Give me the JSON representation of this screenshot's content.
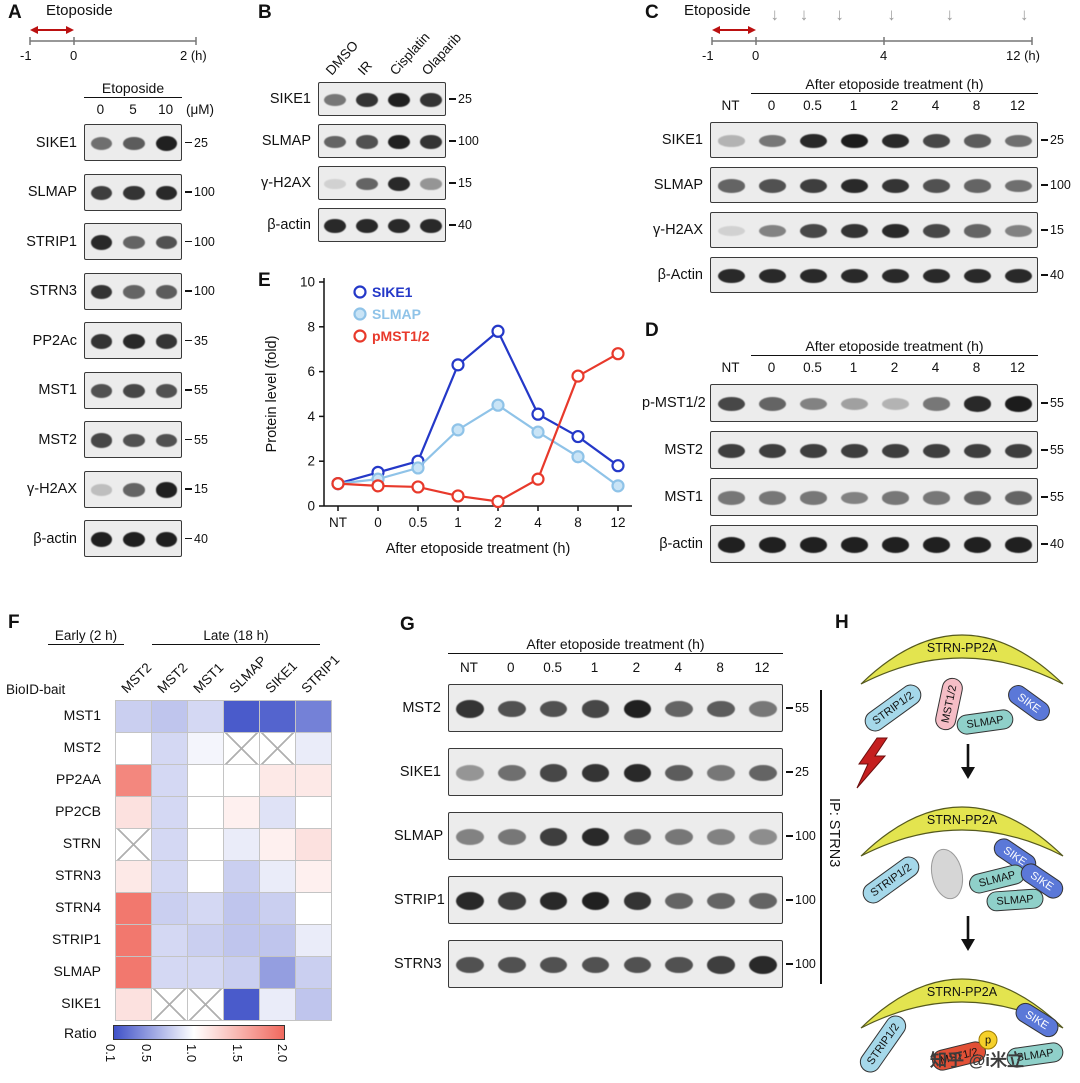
{
  "watermark": "知乎 @i米立",
  "panels": {
    "A": {
      "label": "A",
      "timeline": {
        "drug": "Etoposide",
        "tick_labels": [
          "-1",
          "0",
          "2 (h)"
        ]
      },
      "treatment_header": "Etoposide",
      "lane_unit": "(μM)",
      "lanes": [
        "0",
        "5",
        "10"
      ],
      "rows": [
        {
          "name": "SIKE1",
          "marker": "25",
          "bands": [
            0.55,
            0.65,
            0.95
          ]
        },
        {
          "name": "SLMAP",
          "marker": "100",
          "bands": [
            0.8,
            0.85,
            0.9
          ]
        },
        {
          "name": "STRIP1",
          "marker": "100",
          "bands": [
            0.9,
            0.6,
            0.7
          ]
        },
        {
          "name": "STRN3",
          "marker": "100",
          "bands": [
            0.85,
            0.6,
            0.65
          ]
        },
        {
          "name": "PP2Ac",
          "marker": "35",
          "bands": [
            0.85,
            0.9,
            0.85
          ]
        },
        {
          "name": "MST1",
          "marker": "55",
          "bands": [
            0.7,
            0.75,
            0.7
          ]
        },
        {
          "name": "MST2",
          "marker": "55",
          "bands": [
            0.75,
            0.7,
            0.7
          ]
        },
        {
          "name": "γ-H2AX",
          "marker": "15",
          "bands": [
            0.15,
            0.6,
            0.95
          ]
        },
        {
          "name": "β-actin",
          "marker": "40",
          "bands": [
            0.95,
            0.95,
            0.95
          ]
        }
      ]
    },
    "B": {
      "label": "B",
      "lanes": [
        "DMSO",
        "IR",
        "Cisplatin",
        "Olaparib"
      ],
      "rows": [
        {
          "name": "SIKE1",
          "marker": "25",
          "bands": [
            0.5,
            0.85,
            0.95,
            0.85
          ]
        },
        {
          "name": "SLMAP",
          "marker": "100",
          "bands": [
            0.6,
            0.7,
            0.95,
            0.85
          ]
        },
        {
          "name": "γ-H2AX",
          "marker": "15",
          "bands": [
            0.05,
            0.6,
            0.9,
            0.35
          ]
        },
        {
          "name": "β-actin",
          "marker": "40",
          "bands": [
            0.9,
            0.9,
            0.9,
            0.9
          ]
        }
      ]
    },
    "C": {
      "label": "C",
      "timeline": {
        "drug": "Etoposide",
        "tick_labels": [
          "-1",
          "0",
          "4",
          "12 (h)"
        ],
        "arrow_count": 6
      },
      "treatment_header": "After etoposide treatment (h)",
      "lanes": [
        "NT",
        "0",
        "0.5",
        "1",
        "2",
        "4",
        "8",
        "12"
      ],
      "rows": [
        {
          "name": "SIKE1",
          "marker": "25",
          "bands": [
            0.2,
            0.5,
            0.9,
            0.97,
            0.9,
            0.75,
            0.65,
            0.55
          ]
        },
        {
          "name": "SLMAP",
          "marker": "100",
          "bands": [
            0.6,
            0.7,
            0.8,
            0.9,
            0.85,
            0.7,
            0.6,
            0.55
          ]
        },
        {
          "name": "γ-H2AX",
          "marker": "15",
          "bands": [
            0.05,
            0.45,
            0.75,
            0.85,
            0.9,
            0.75,
            0.6,
            0.45
          ]
        },
        {
          "name": "β-Actin",
          "marker": "40",
          "bands": [
            0.9,
            0.9,
            0.9,
            0.9,
            0.9,
            0.9,
            0.9,
            0.9
          ]
        }
      ]
    },
    "D": {
      "label": "D",
      "treatment_header": "After etoposide treatment (h)",
      "lanes": [
        "NT",
        "0",
        "0.5",
        "1",
        "2",
        "4",
        "8",
        "12"
      ],
      "rows": [
        {
          "name": "p-MST1/2",
          "marker": "55",
          "bands": [
            0.75,
            0.6,
            0.45,
            0.3,
            0.2,
            0.5,
            0.9,
            0.97
          ]
        },
        {
          "name": "MST2",
          "marker": "55",
          "bands": [
            0.8,
            0.8,
            0.8,
            0.8,
            0.8,
            0.8,
            0.8,
            0.8
          ]
        },
        {
          "name": "MST1",
          "marker": "55",
          "bands": [
            0.5,
            0.5,
            0.5,
            0.45,
            0.5,
            0.5,
            0.6,
            0.6
          ]
        },
        {
          "name": "β-actin",
          "marker": "40",
          "bands": [
            0.95,
            0.95,
            0.95,
            0.95,
            0.95,
            0.95,
            0.95,
            0.95
          ]
        }
      ]
    },
    "E": {
      "label": "E"
    },
    "F": {
      "label": "F",
      "bait_label": "BioID-bait"
    },
    "G": {
      "label": "G",
      "treatment_header": "After etoposide treatment (h)",
      "lanes": [
        "NT",
        "0",
        "0.5",
        "1",
        "2",
        "4",
        "8",
        "12"
      ],
      "ip_label": "IP: STRN3",
      "rows": [
        {
          "name": "MST2",
          "marker": "55",
          "bands": [
            0.85,
            0.7,
            0.7,
            0.75,
            0.95,
            0.6,
            0.65,
            0.5
          ]
        },
        {
          "name": "SIKE1",
          "marker": "25",
          "bands": [
            0.35,
            0.55,
            0.75,
            0.85,
            0.9,
            0.65,
            0.5,
            0.6
          ]
        },
        {
          "name": "SLMAP",
          "marker": "100",
          "bands": [
            0.45,
            0.5,
            0.8,
            0.9,
            0.6,
            0.5,
            0.45,
            0.4
          ]
        },
        {
          "name": "STRIP1",
          "marker": "100",
          "bands": [
            0.9,
            0.8,
            0.9,
            0.95,
            0.85,
            0.6,
            0.6,
            0.6
          ]
        },
        {
          "name": "STRN3",
          "marker": "100",
          "bands": [
            0.7,
            0.7,
            0.7,
            0.7,
            0.7,
            0.7,
            0.8,
            0.9
          ]
        }
      ]
    },
    "H": {
      "label": "H",
      "stage1": {
        "complex": "STRN-PP2A",
        "strip": "STRIP1/2",
        "mst": "MST1/2",
        "slmap": "SLMAP",
        "sike": "SIKE"
      },
      "stage2": {
        "complex": "STRN-PP2A",
        "strip": "STRIP1/2",
        "sike1": "SIKE",
        "slmap1": "SLMAP",
        "sike2": "SIKE",
        "slmap2": "SLMAP"
      },
      "stage3": {
        "complex": "STRN-PP2A",
        "strip": "STRIP1/2",
        "mst": "MST1/2",
        "p": "p",
        "sike": "SIKE",
        "slmap": "SLMAP"
      }
    }
  },
  "chart_data": [
    {
      "id": "E",
      "type": "line",
      "categories": [
        "NT",
        "0",
        "0.5",
        "1",
        "2",
        "4",
        "8",
        "12"
      ],
      "series": [
        {
          "name": "SIKE1",
          "color": "#2438c8",
          "fill": "#ffffff",
          "values": [
            1.0,
            1.5,
            2.0,
            6.3,
            7.8,
            4.1,
            3.1,
            1.8
          ]
        },
        {
          "name": "SLMAP",
          "color": "#8fc3e8",
          "fill": "#c9e4f6",
          "values": [
            1.0,
            1.2,
            1.7,
            3.4,
            4.5,
            3.3,
            2.2,
            0.9
          ]
        },
        {
          "name": "pMST1/2",
          "color": "#e8392b",
          "fill": "#ffffff",
          "values": [
            1.0,
            0.9,
            0.85,
            0.45,
            0.2,
            1.2,
            5.8,
            6.8
          ]
        }
      ],
      "xlabel": "After etoposide treatment (h)",
      "ylabel": "Protein level (fold)",
      "ylim": [
        0,
        10
      ],
      "yticks": [
        0,
        2,
        4,
        6,
        8,
        10
      ],
      "legend_position": "top-left",
      "grid": false
    },
    {
      "id": "F",
      "type": "heatmap",
      "columns": [
        "MST2",
        "MST2",
        "MST1",
        "SLMAP",
        "SIKE1",
        "STRIP1"
      ],
      "column_groups": [
        {
          "label": "Early (2 h)",
          "span": 1
        },
        {
          "label": "Late (18 h)",
          "span": 5
        }
      ],
      "rows": [
        "MST1",
        "MST2",
        "PP2AA",
        "PP2CB",
        "STRN",
        "STRN3",
        "STRN4",
        "STRIP1",
        "SLMAP",
        "SIKE1"
      ],
      "values": [
        [
          0.75,
          0.7,
          0.8,
          0.15,
          0.2,
          0.35
        ],
        [
          1.0,
          0.8,
          0.95,
          null,
          null,
          0.9
        ],
        [
          1.8,
          0.8,
          1.0,
          1.0,
          1.15,
          1.15
        ],
        [
          1.2,
          0.8,
          1.0,
          1.1,
          0.85,
          1.0
        ],
        [
          null,
          0.8,
          1.0,
          0.9,
          1.1,
          1.2
        ],
        [
          1.15,
          0.8,
          1.0,
          0.75,
          0.9,
          1.1
        ],
        [
          1.9,
          0.75,
          0.8,
          0.7,
          0.75,
          1.0
        ],
        [
          1.9,
          0.8,
          0.75,
          0.7,
          0.7,
          0.9
        ],
        [
          1.9,
          0.8,
          0.8,
          0.75,
          0.5,
          0.75
        ],
        [
          1.2,
          null,
          null,
          0.15,
          0.9,
          0.7
        ]
      ],
      "colorbar": {
        "label": "Ratio",
        "ticks": [
          "0.1",
          "0.5",
          "1.0",
          "1.5",
          "2.0"
        ],
        "min": 0.1,
        "mid": 1.0,
        "max": 2.0,
        "low_color": "#3f51c8",
        "mid_color": "#ffffff",
        "high_color": "#f0695e"
      }
    }
  ]
}
